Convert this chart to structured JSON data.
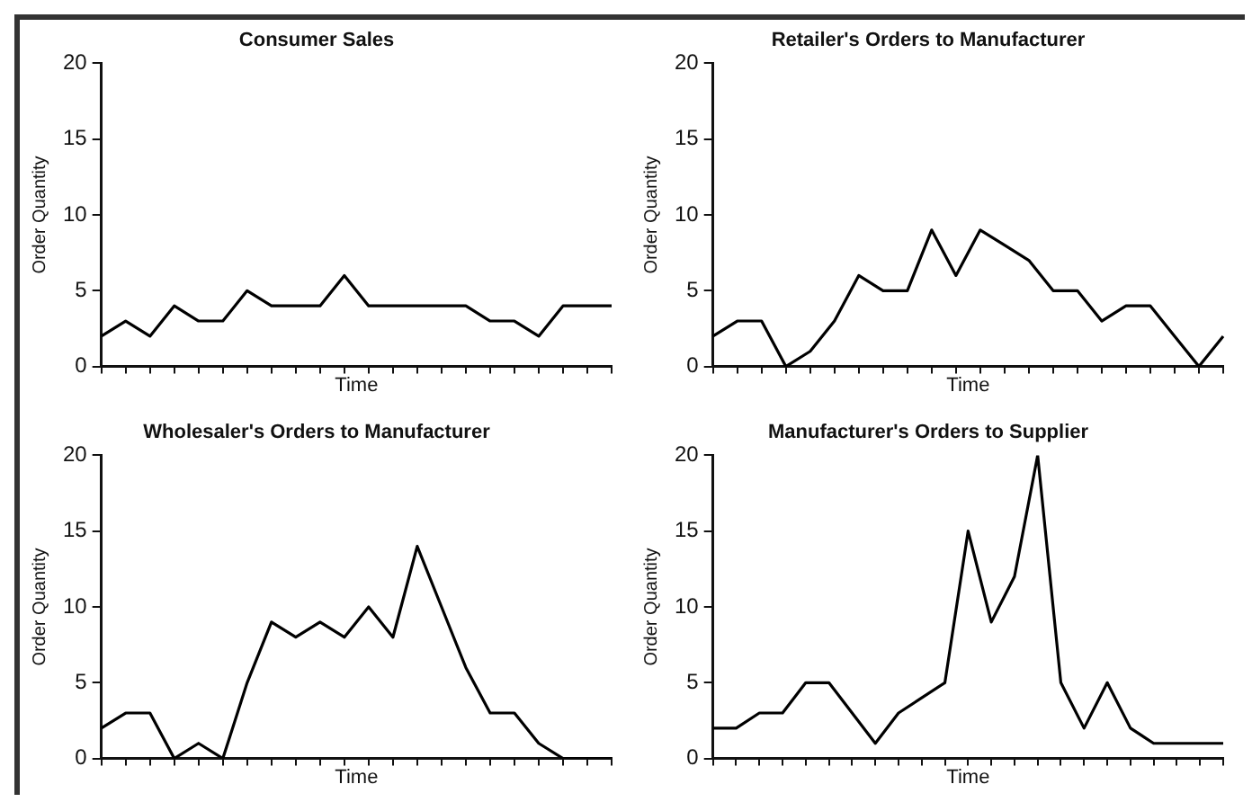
{
  "chart_data": [
    {
      "type": "line",
      "title": "Consumer Sales",
      "xlabel": "Time",
      "ylabel": "Order Quantity",
      "categories": [
        null,
        null,
        null,
        null,
        null,
        null,
        null,
        null,
        null,
        null,
        null,
        null,
        null,
        null,
        null,
        null,
        null,
        null,
        null,
        null,
        null,
        null
      ],
      "values": [
        2,
        3,
        2,
        4,
        3,
        3,
        5,
        4,
        4,
        4,
        6,
        4,
        4,
        4,
        4,
        4,
        3,
        3,
        2,
        4,
        4,
        4
      ],
      "color": "#000000",
      "ylim": [
        0,
        20
      ],
      "yticks": [
        0,
        5,
        10,
        15,
        20
      ],
      "tick_labels": "y",
      "grid": false,
      "legend": false,
      "marker": "none"
    },
    {
      "type": "line",
      "title": "Retailer's Orders to Manufacturer",
      "xlabel": "Time",
      "ylabel": "Order Quantity",
      "categories": [
        null,
        null,
        null,
        null,
        null,
        null,
        null,
        null,
        null,
        null,
        null,
        null,
        null,
        null,
        null,
        null,
        null,
        null,
        null,
        null,
        null,
        null
      ],
      "values": [
        2,
        3,
        3,
        0,
        1,
        3,
        6,
        5,
        5,
        9,
        6,
        9,
        8,
        7,
        5,
        5,
        3,
        4,
        4,
        2,
        0,
        2
      ],
      "color": "#000000",
      "ylim": [
        0,
        20
      ],
      "yticks": [
        0,
        5,
        10,
        15,
        20
      ],
      "tick_labels": "y",
      "grid": false,
      "legend": false,
      "marker": "none"
    },
    {
      "type": "line",
      "title": "Wholesaler's Orders to Manufacturer",
      "xlabel": "Time",
      "ylabel": "Order Quantity",
      "categories": [
        null,
        null,
        null,
        null,
        null,
        null,
        null,
        null,
        null,
        null,
        null,
        null,
        null,
        null,
        null,
        null,
        null,
        null,
        null,
        null,
        null,
        null
      ],
      "values": [
        2,
        3,
        3,
        0,
        1,
        0,
        5,
        9,
        8,
        9,
        8,
        10,
        8,
        14,
        10,
        6,
        3,
        3,
        1,
        0,
        0,
        0
      ],
      "color": "#000000",
      "ylim": [
        0,
        20
      ],
      "yticks": [
        0,
        5,
        10,
        15,
        20
      ],
      "tick_labels": "y",
      "grid": false,
      "legend": false,
      "marker": "none"
    },
    {
      "type": "line",
      "title": "Manufacturer's Orders to Supplier",
      "xlabel": "Time",
      "ylabel": "Order Quantity",
      "categories": [
        null,
        null,
        null,
        null,
        null,
        null,
        null,
        null,
        null,
        null,
        null,
        null,
        null,
        null,
        null,
        null,
        null,
        null,
        null,
        null,
        null,
        null,
        null
      ],
      "values": [
        2,
        2,
        3,
        3,
        5,
        5,
        3,
        1,
        3,
        4,
        5,
        15,
        9,
        12,
        20,
        5,
        2,
        5,
        2,
        1,
        1,
        1,
        1
      ],
      "color": "#000000",
      "ylim": [
        0,
        20
      ],
      "yticks": [
        0,
        5,
        10,
        15,
        20
      ],
      "tick_labels": "y",
      "grid": false,
      "legend": false,
      "marker": "none"
    }
  ]
}
